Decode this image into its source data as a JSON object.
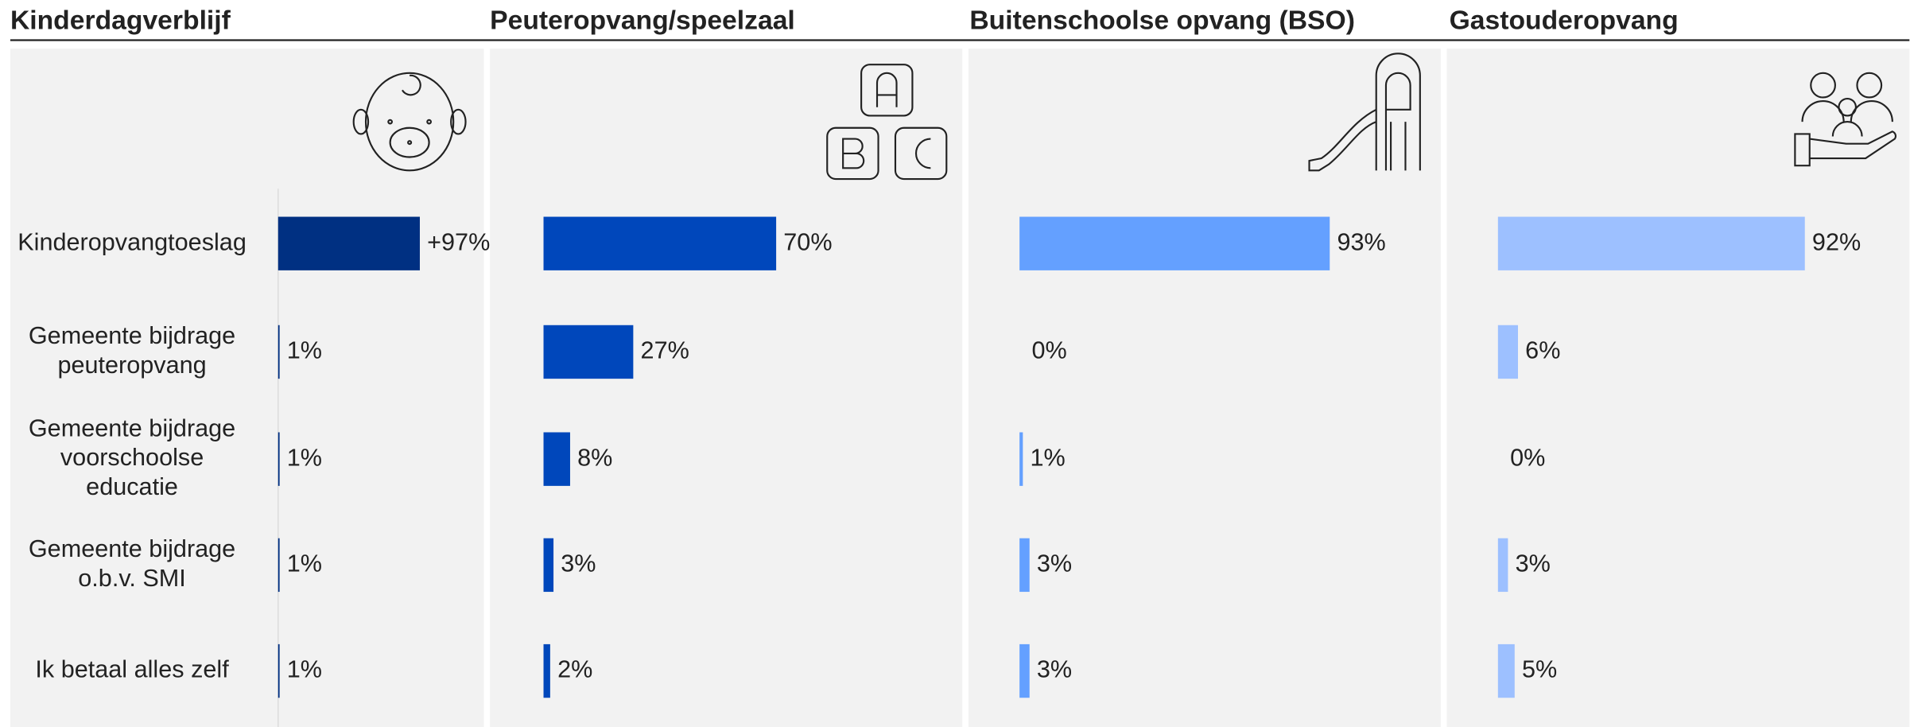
{
  "chart_data": [
    {
      "type": "bar",
      "title": "Kinderdagverblijf",
      "color": "#003082",
      "categories": [
        "Kinderopvangtoeslag",
        "Gemeente bijdrage\npeuteropvang",
        "Gemeente bijdrage\nvoorschoolse\neducatie",
        "Gemeente bijdrage\no.b.v. SMI",
        "Ik betaal alles zelf"
      ],
      "values": [
        97,
        1,
        1,
        1,
        1
      ],
      "value_labels": [
        "+97%",
        "1%",
        "1%",
        "1%",
        "1%"
      ]
    },
    {
      "type": "bar",
      "title": "Peuteropvang/speelzaal",
      "color": "#0047bb",
      "values": [
        70,
        27,
        8,
        3,
        2
      ],
      "value_labels": [
        "70%",
        "27%",
        "8%",
        "3%",
        "2%"
      ]
    },
    {
      "type": "bar",
      "title": "Buitenschoolse opvang (BSO)",
      "color": "#64a0ff",
      "values": [
        93,
        0,
        1,
        3,
        3
      ],
      "value_labels": [
        "93%",
        "0%",
        "1%",
        "3%",
        "3%"
      ]
    },
    {
      "type": "bar",
      "title": "Gastouderopvang",
      "color": "#9dc0ff",
      "values": [
        92,
        6,
        0,
        3,
        5
      ],
      "value_labels": [
        "92%",
        "6%",
        "0%",
        "3%",
        "5%"
      ]
    }
  ]
}
